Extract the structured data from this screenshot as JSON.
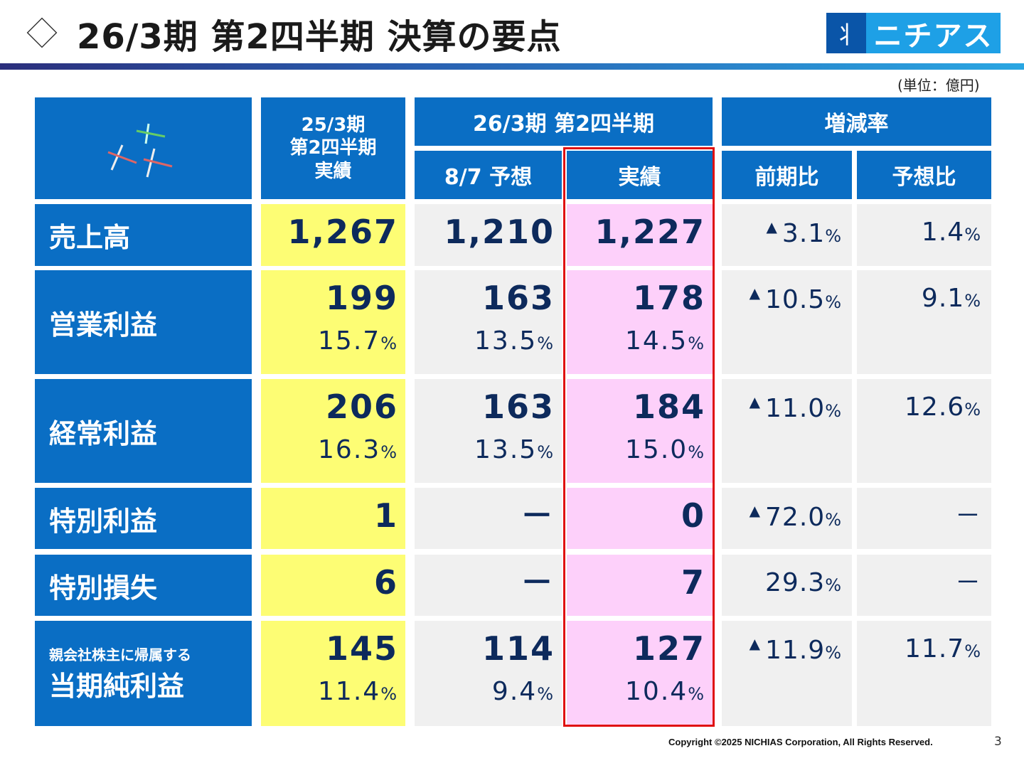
{
  "title": "26/3期 第2四半期 決算の要点",
  "logo": {
    "text": "ニチアス",
    "brand_color": "#1ea0e6"
  },
  "unit": "(単位：億円)",
  "header": {
    "prev": "25/3期\n第2四半期\n実績",
    "current": "26/3期 第2四半期",
    "forecast": "8/7 予想",
    "actual": "実績",
    "change": "増減率",
    "yoy": "前期比",
    "vs_forecast": "予想比"
  },
  "rows": [
    {
      "label": "売上高",
      "prev": "1,267",
      "forecast": "1,210",
      "actual": "1,227",
      "yoy": {
        "arrow": "▲",
        "value": "3.1",
        "unit": "%"
      },
      "vsf": {
        "value": "1.4",
        "unit": "%"
      }
    },
    {
      "label": "営業利益",
      "prev": "199",
      "prev_r": "15.7",
      "forecast": "163",
      "forecast_r": "13.5",
      "actual": "178",
      "actual_r": "14.5",
      "yoy": {
        "arrow": "▲",
        "value": "10.5",
        "unit": "%"
      },
      "vsf": {
        "value": "9.1",
        "unit": "%"
      }
    },
    {
      "label": "経常利益",
      "prev": "206",
      "prev_r": "16.3",
      "forecast": "163",
      "forecast_r": "13.5",
      "actual": "184",
      "actual_r": "15.0",
      "yoy": {
        "arrow": "▲",
        "value": "11.0",
        "unit": "%"
      },
      "vsf": {
        "value": "12.6",
        "unit": "%"
      }
    },
    {
      "label": "特別利益",
      "prev": "1",
      "forecast": "－",
      "actual": "0",
      "yoy": {
        "arrow": "▲",
        "value": "72.0",
        "unit": "%"
      },
      "vsf": {
        "value": "－"
      }
    },
    {
      "label": "特別損失",
      "prev": "6",
      "forecast": "－",
      "actual": "7",
      "yoy": {
        "value": "29.3",
        "unit": "%"
      },
      "vsf": {
        "value": "－"
      }
    },
    {
      "sublabel": "親会社株主に帰属する",
      "label": "当期純利益",
      "prev": "145",
      "prev_r": "11.4",
      "forecast": "114",
      "forecast_r": "9.4",
      "actual": "127",
      "actual_r": "10.4",
      "yoy": {
        "arrow": "▲",
        "value": "11.9",
        "unit": "%"
      },
      "vsf": {
        "value": "11.7",
        "unit": "%"
      }
    }
  ],
  "pct": "%",
  "copyright": "Copyright ©2025 NICHIAS Corporation, All Rights Reserved.",
  "page": "3"
}
